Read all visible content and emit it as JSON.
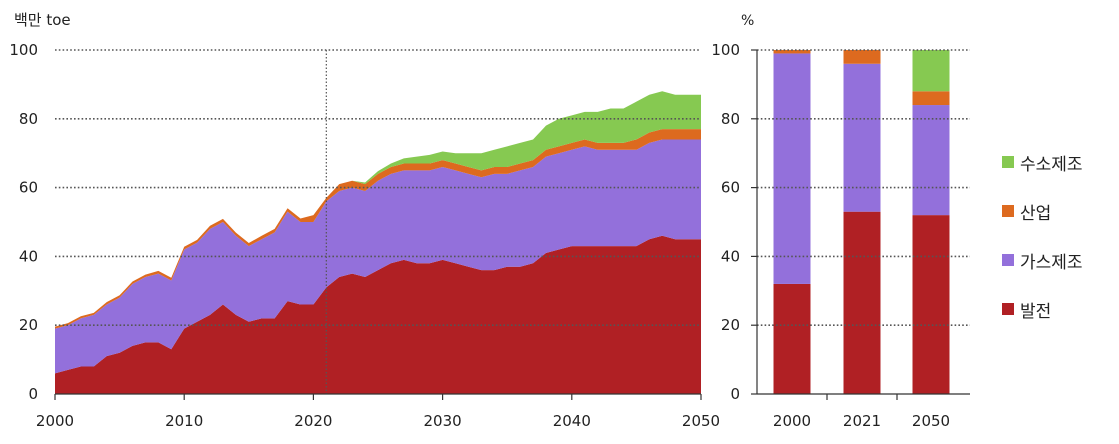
{
  "chart_data": [
    {
      "type": "area",
      "ylabel": "백만 toe",
      "xlim": [
        2000,
        2050
      ],
      "ylim": [
        0,
        100
      ],
      "yticks": [
        0,
        20,
        40,
        60,
        80,
        100
      ],
      "xticks": [
        "2000",
        "2010",
        "2020",
        "2030",
        "2040",
        "2050"
      ],
      "grid": true,
      "reference_line_x": 2021,
      "x": [
        2000,
        2001,
        2002,
        2003,
        2004,
        2005,
        2006,
        2007,
        2008,
        2009,
        2010,
        2011,
        2012,
        2013,
        2014,
        2015,
        2016,
        2017,
        2018,
        2019,
        2020,
        2021,
        2022,
        2023,
        2024,
        2025,
        2026,
        2027,
        2028,
        2029,
        2030,
        2031,
        2032,
        2033,
        2034,
        2035,
        2036,
        2037,
        2038,
        2039,
        2040,
        2041,
        2042,
        2043,
        2044,
        2045,
        2046,
        2047,
        2048,
        2049,
        2050
      ],
      "series": [
        {
          "name": "발전",
          "values": [
            6,
            7,
            8,
            8,
            11,
            12,
            14,
            15,
            15,
            13,
            19,
            21,
            23,
            26,
            23,
            21,
            22,
            22,
            27,
            26,
            26,
            31,
            34,
            35,
            34,
            36,
            38,
            39,
            38,
            38,
            39,
            38,
            37,
            36,
            36,
            37,
            37,
            38,
            41,
            42,
            43,
            43,
            43,
            43,
            43,
            43,
            45,
            46,
            45,
            45,
            45
          ]
        },
        {
          "name": "가스제조",
          "values": [
            13,
            13,
            14,
            15,
            15,
            16,
            18,
            19,
            20,
            20,
            23,
            23,
            25,
            24,
            23,
            22,
            23,
            25,
            26,
            24,
            24,
            25,
            25,
            25,
            25,
            26,
            26,
            26,
            27,
            27,
            27,
            27,
            27,
            27,
            28,
            27,
            28,
            28,
            28,
            28,
            28,
            29,
            28,
            28,
            28,
            28,
            28,
            28,
            29,
            29,
            29
          ]
        },
        {
          "name": "산업",
          "values": [
            0.6,
            0.6,
            0.6,
            0.6,
            0.7,
            0.7,
            0.7,
            0.7,
            0.8,
            0.8,
            0.8,
            0.8,
            0.9,
            0.9,
            0.9,
            0.9,
            1,
            1,
            1,
            1,
            2,
            1,
            2,
            2,
            2,
            2,
            2,
            2,
            2,
            2,
            2,
            2,
            2,
            2,
            2,
            2,
            2,
            2,
            2,
            2,
            2,
            2,
            2,
            2,
            2,
            3,
            3,
            3,
            3,
            3,
            3
          ]
        },
        {
          "name": "수소제조",
          "values": [
            0,
            0,
            0,
            0,
            0,
            0,
            0,
            0,
            0,
            0,
            0,
            0,
            0,
            0,
            0,
            0,
            0,
            0,
            0,
            0,
            0,
            0,
            0,
            0,
            0.5,
            0.8,
            1,
            1.5,
            2,
            2.5,
            2.5,
            3,
            4,
            5,
            5,
            6,
            6,
            6,
            7,
            8,
            8,
            8,
            9,
            10,
            10,
            11,
            11,
            11,
            10,
            10,
            10
          ]
        }
      ],
      "colors": [
        "#b02024",
        "#9370db",
        "#dd6a1f",
        "#86c951"
      ]
    },
    {
      "type": "bar",
      "ylabel": "%",
      "ylim": [
        0,
        100
      ],
      "yticks": [
        0,
        20,
        40,
        60,
        80,
        100
      ],
      "categories": [
        "2000",
        "2021",
        "2050"
      ],
      "stacked": true,
      "grid": true,
      "series": [
        {
          "name": "발전",
          "values": [
            32,
            53,
            52
          ]
        },
        {
          "name": "가스제조",
          "values": [
            67,
            43,
            32
          ]
        },
        {
          "name": "산업",
          "values": [
            1,
            4,
            4
          ]
        },
        {
          "name": "수소제조",
          "values": [
            0,
            0,
            12
          ]
        }
      ],
      "colors": [
        "#b02024",
        "#9370db",
        "#dd6a1f",
        "#86c951"
      ]
    }
  ],
  "legend": {
    "position": "right",
    "items": [
      {
        "label": "수소제조",
        "color": "#86c951"
      },
      {
        "label": "산업",
        "color": "#dd6a1f"
      },
      {
        "label": "가스제조",
        "color": "#9370db"
      },
      {
        "label": "발전",
        "color": "#b02024"
      }
    ]
  }
}
